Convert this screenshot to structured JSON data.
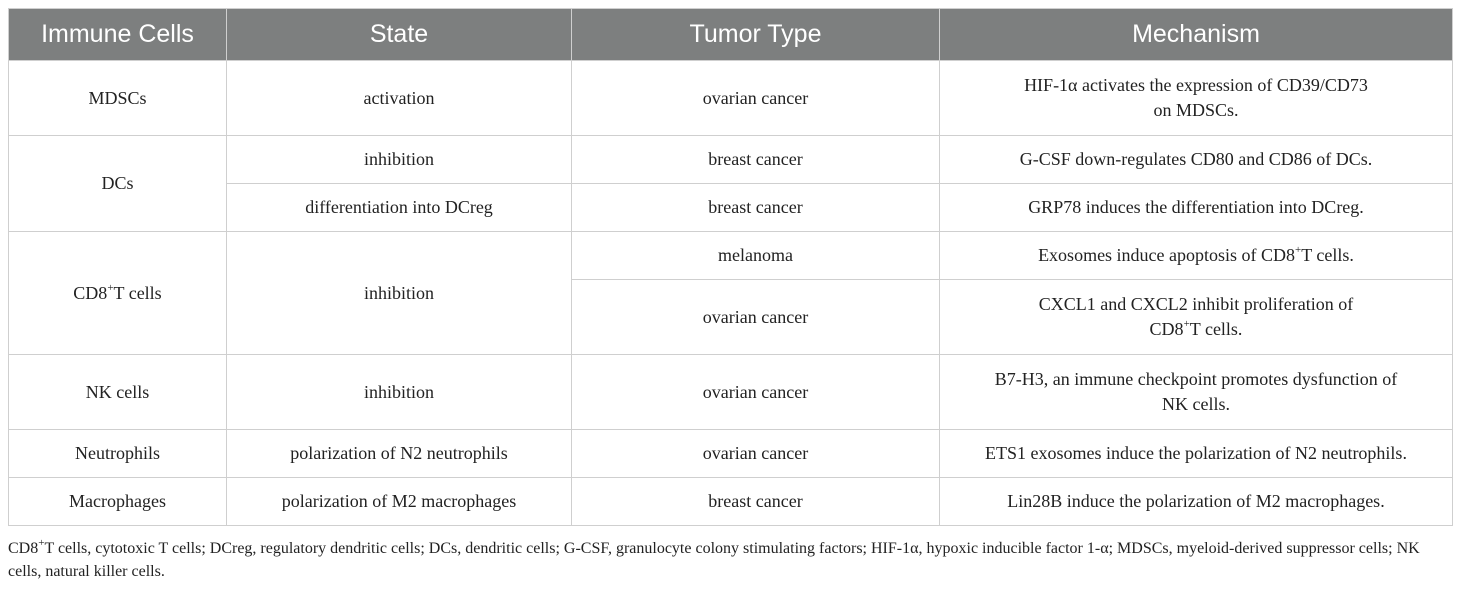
{
  "header": {
    "col1": "Immune Cells",
    "col2": "State",
    "col3": "Tumor Type",
    "col4": "Mechanism"
  },
  "rows": {
    "mdscs": {
      "cell": "MDSCs",
      "state": "activation",
      "tumor": "ovarian cancer",
      "mechanism_line1": "HIF-1α activates the expression of CD39/CD73",
      "mechanism_line2": "on MDSCs."
    },
    "dcs": {
      "cell": "DCs",
      "state1": "inhibition",
      "tumor1": "breast cancer",
      "mechanism1": "G-CSF down-regulates CD80 and CD86 of DCs.",
      "state2": "differentiation into DCreg",
      "tumor2": "breast cancer",
      "mechanism2": "GRP78 induces the differentiation into DCreg."
    },
    "cd8": {
      "cell_prefix": "CD8",
      "cell_sup": "+",
      "cell_suffix": "T cells",
      "state": "inhibition",
      "tumor1": "melanoma",
      "mechanism1_prefix": "Exosomes induce apoptosis of CD8",
      "mechanism1_sup": "+",
      "mechanism1_suffix": "T cells.",
      "tumor2": "ovarian cancer",
      "mechanism2_line1": "CXCL1 and CXCL2 inhibit proliferation of",
      "mechanism2_line2_prefix": "CD8",
      "mechanism2_line2_sup": "+",
      "mechanism2_line2_suffix": "T cells."
    },
    "nk": {
      "cell": "NK cells",
      "state": "inhibition",
      "tumor": "ovarian cancer",
      "mechanism_line1": "B7-H3, an immune checkpoint promotes dysfunction of",
      "mechanism_line2": "NK cells."
    },
    "neutrophils": {
      "cell": "Neutrophils",
      "state": "polarization of N2 neutrophils",
      "tumor": "ovarian cancer",
      "mechanism": "ETS1 exosomes induce the polarization of N2 neutrophils."
    },
    "macrophages": {
      "cell": "Macrophages",
      "state": "polarization of M2 macrophages",
      "tumor": "breast cancer",
      "mechanism": "Lin28B induce the polarization of M2 macrophages."
    }
  },
  "footnote": {
    "prefix": "CD8",
    "sup": "+",
    "text": "T cells, cytotoxic T cells; DCreg, regulatory dendritic cells; DCs, dendritic cells; G-CSF, granulocyte colony stimulating factors; HIF-1α, hypoxic inducible factor 1-α; MDSCs, myeloid-derived suppressor cells; NK cells, natural killer cells."
  }
}
